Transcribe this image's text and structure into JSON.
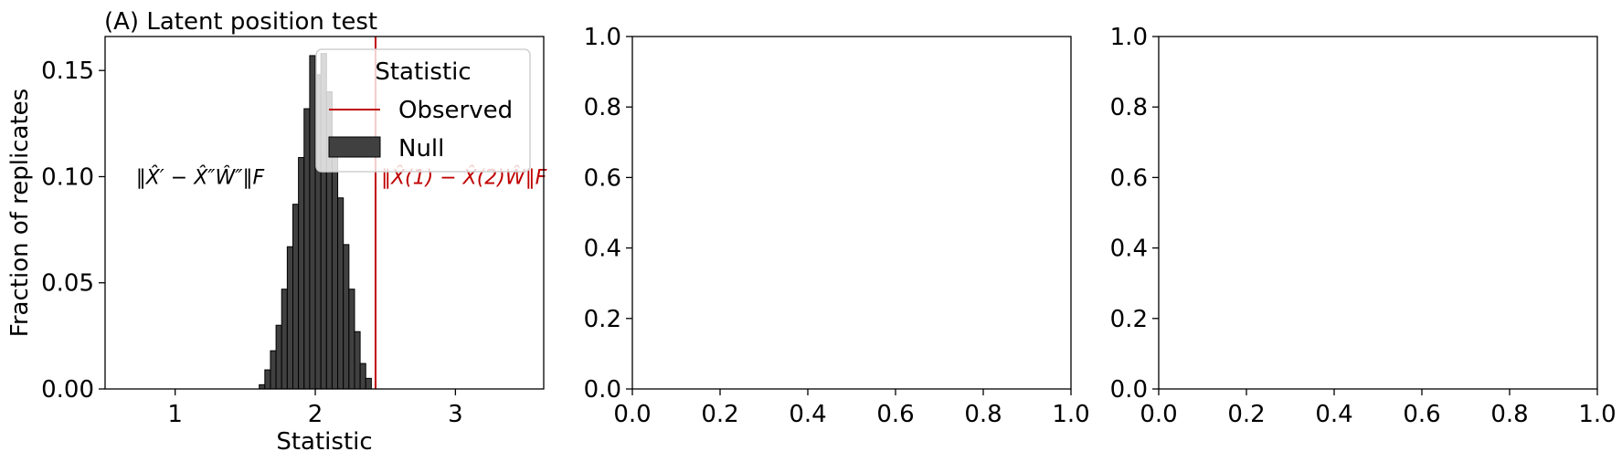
{
  "chart_data": [
    {
      "type": "bar",
      "title": "(A) Latent position test",
      "xlabel": "Statistic",
      "ylabel": "Fraction of replicates",
      "xlim": [
        0.5,
        3.63
      ],
      "ylim": [
        0,
        0.166
      ],
      "xticks": [
        "1",
        "2",
        "3"
      ],
      "xtick_values": [
        1,
        2,
        3
      ],
      "yticks": [
        "0.00",
        "0.05",
        "0.10",
        "0.15"
      ],
      "ytick_values": [
        0,
        0.05,
        0.1,
        0.15
      ],
      "bin_width": 0.04,
      "bin_start": 1.6,
      "null_values": [
        0.002,
        0.009,
        0.018,
        0.03,
        0.047,
        0.067,
        0.087,
        0.109,
        0.132,
        0.157,
        0.148,
        0.158,
        0.14,
        0.114,
        0.09,
        0.068,
        0.047,
        0.027,
        0.012,
        0.005
      ],
      "observed": 2.43,
      "annotation_null": "‖X̂′ − X̂″Ŵ″‖F",
      "annotation_observed": "‖X̂(1) − X̂(2)Ŵ‖F",
      "legend": {
        "title": "Statistic",
        "entries": [
          "Observed",
          "Null"
        ],
        "placement": "top-right"
      },
      "colors": {
        "observed": "#c00000",
        "null": "#404040"
      }
    },
    {
      "type": "empty",
      "xlim": [
        0,
        1
      ],
      "ylim": [
        0,
        1
      ],
      "xticks": [
        "0.0",
        "0.2",
        "0.4",
        "0.6",
        "0.8",
        "1.0"
      ],
      "yticks": [
        "0.0",
        "0.2",
        "0.4",
        "0.6",
        "0.8",
        "1.0"
      ]
    },
    {
      "type": "empty",
      "xlim": [
        0,
        1
      ],
      "ylim": [
        0,
        1
      ],
      "xticks": [
        "0.0",
        "0.2",
        "0.4",
        "0.6",
        "0.8",
        "1.0"
      ],
      "yticks": [
        "0.0",
        "0.2",
        "0.4",
        "0.6",
        "0.8",
        "1.0"
      ]
    }
  ]
}
